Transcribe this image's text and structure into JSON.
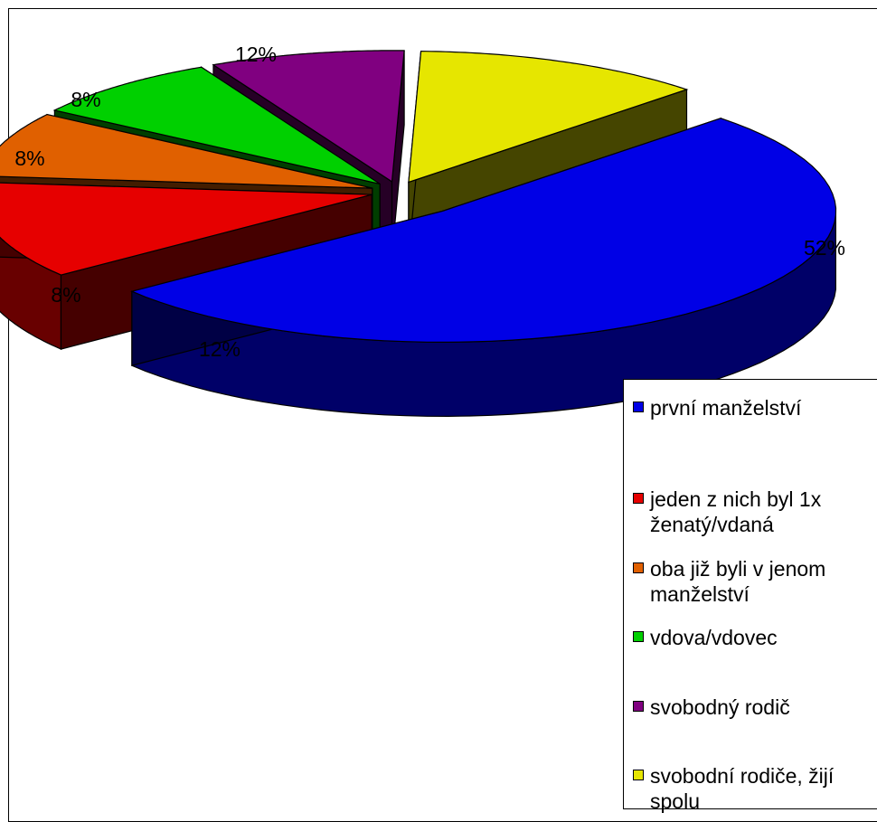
{
  "chart_data": {
    "type": "pie",
    "style": "3d-exploded",
    "slices": [
      {
        "label": "první manželství",
        "value": 52,
        "value_label": "52%",
        "color": "#0000E6"
      },
      {
        "label": "jeden z nich byl 1x ženatý/vdaná",
        "value": 12,
        "value_label": "12%",
        "color": "#E60000"
      },
      {
        "label": "oba již byli v jenom manželství",
        "value": 8,
        "value_label": "8%",
        "color": "#E06000"
      },
      {
        "label": "vdova/vdovec",
        "value": 8,
        "value_label": "8%",
        "color": "#00D000"
      },
      {
        "label": "svobodný rodič",
        "value": 8,
        "value_label": "8%",
        "color": "#800080"
      },
      {
        "label": "svobodní rodiče, žijí spolu",
        "value": 12,
        "value_label": "12%",
        "color": "#E6E600"
      }
    ],
    "legend_position": "bottom-right"
  }
}
